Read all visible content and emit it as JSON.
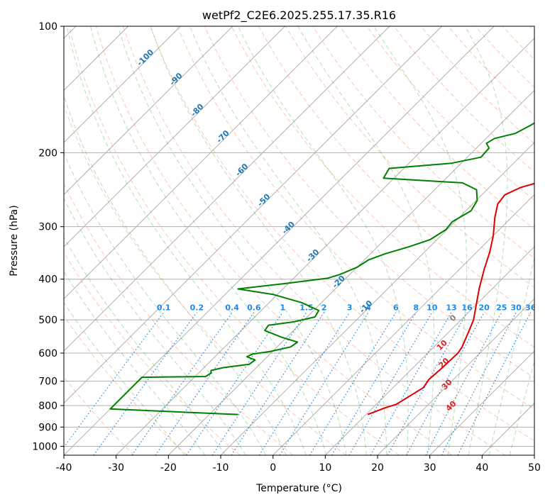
{
  "chart_data": {
    "type": "line",
    "subtype": "skew-t log-p diagram",
    "title": "wetPf2_C2E6.2025.255.17.35.R16",
    "xlabel": "Temperature (°C)",
    "ylabel": "Pressure (hPa)",
    "xlim": [
      -40,
      50
    ],
    "ylim": [
      1050,
      100
    ],
    "y_scale": "log",
    "grid": true,
    "x_ticks": [
      -40,
      -30,
      -20,
      -10,
      0,
      10,
      20,
      30,
      40,
      50
    ],
    "y_ticks": [
      100,
      200,
      300,
      400,
      500,
      600,
      700,
      800,
      900,
      1000
    ],
    "series": [
      {
        "color": "#e00000",
        "points": [
          [
            10.3,
            840
          ],
          [
            12.5,
            808
          ],
          [
            13.8,
            795
          ],
          [
            14.8,
            760
          ],
          [
            15.8,
            725
          ],
          [
            15.3,
            695
          ],
          [
            15.6,
            650
          ],
          [
            15.8,
            600
          ],
          [
            15.4,
            580
          ],
          [
            13.6,
            530
          ],
          [
            12.4,
            500
          ],
          [
            10.0,
            460
          ],
          [
            7.4,
            420
          ],
          [
            4.8,
            380
          ],
          [
            2.5,
            345
          ],
          [
            0.0,
            315
          ],
          [
            -3.2,
            285
          ],
          [
            -5.2,
            265
          ],
          [
            -5.6,
            252
          ],
          [
            -4.0,
            242
          ],
          [
            -0.3,
            232
          ],
          [
            3.6,
            222
          ],
          [
            7.0,
            213
          ],
          [
            7.6,
            205
          ],
          [
            7.1,
            195
          ],
          [
            6.6,
            185
          ],
          [
            6.6,
            175
          ],
          [
            6.6,
            165
          ],
          [
            7.7,
            153
          ],
          [
            9.3,
            142
          ],
          [
            10.7,
            132
          ],
          [
            12.3,
            122
          ],
          [
            14.1,
            113
          ],
          [
            15.3,
            104
          ],
          [
            16.0,
            100
          ]
        ]
      },
      {
        "color": "#008000",
        "points": [
          [
            -14.5,
            840
          ],
          [
            -40,
            815
          ],
          [
            -40,
            685
          ],
          [
            -28.0,
            682
          ],
          [
            -27.6,
            670
          ],
          [
            -28.1,
            660
          ],
          [
            -26.4,
            650
          ],
          [
            -22.0,
            638
          ],
          [
            -21.7,
            623
          ],
          [
            -23.9,
            612
          ],
          [
            -23.3,
            603
          ],
          [
            -20.5,
            595
          ],
          [
            -17.4,
            580
          ],
          [
            -17.0,
            565
          ],
          [
            -21.0,
            550
          ],
          [
            -25.5,
            530
          ],
          [
            -25.8,
            515
          ],
          [
            -21.5,
            505
          ],
          [
            -18.5,
            492
          ],
          [
            -19.0,
            475
          ],
          [
            -23.8,
            455
          ],
          [
            -30.8,
            435
          ],
          [
            -38.6,
            422
          ],
          [
            -30.7,
            410
          ],
          [
            -23.5,
            398
          ],
          [
            -21.9,
            390
          ],
          [
            -20.0,
            375
          ],
          [
            -19.2,
            360
          ],
          [
            -17.2,
            348
          ],
          [
            -14.0,
            335
          ],
          [
            -11.3,
            322
          ],
          [
            -10.2,
            305
          ],
          [
            -10.5,
            292
          ],
          [
            -9.0,
            275
          ],
          [
            -9.8,
            260
          ],
          [
            -12.0,
            245
          ],
          [
            -16.0,
            236
          ],
          [
            -32.0,
            230
          ],
          [
            -32.8,
            218
          ],
          [
            -21.9,
            212
          ],
          [
            -17.4,
            205
          ],
          [
            -17.6,
            195
          ],
          [
            -19.0,
            190
          ],
          [
            -18.4,
            185
          ],
          [
            -15.4,
            180
          ],
          [
            -14.0,
            172
          ],
          [
            -12.6,
            162
          ],
          [
            -11.3,
            151
          ],
          [
            -10.4,
            138
          ],
          [
            -10.2,
            131
          ],
          [
            -9.9,
            127
          ],
          [
            -9.5,
            120
          ],
          [
            -8.6,
            112
          ],
          [
            -7.6,
            106
          ],
          [
            -7.1,
            100
          ]
        ]
      }
    ],
    "isotherm_labels": [
      "-100",
      "-90",
      "-80",
      "-70",
      "-60",
      "-50",
      "-40",
      "-30",
      "-20",
      "-10"
    ],
    "mixing_ratio_labels": [
      "0.1",
      "0.2",
      "0.4",
      "0.6",
      "1",
      "1.5",
      "2",
      "3",
      "4",
      "6",
      "8",
      "10",
      "13",
      "16",
      "20",
      "25",
      "30",
      "36"
    ],
    "moist_adiabat_labels": [
      "0",
      "10",
      "20",
      "30",
      "40"
    ],
    "colors": {
      "temperature": "#e00000",
      "dewpoint": "#008000",
      "isotherm_label": "#1f77b4",
      "mixing_ratio": "#1e88e5",
      "dry_adiabat": "#ff7f50",
      "moist_adiabat": "#2ca02c",
      "moist_label_gray": "#808080",
      "moist_label_red": "#d62728"
    }
  }
}
